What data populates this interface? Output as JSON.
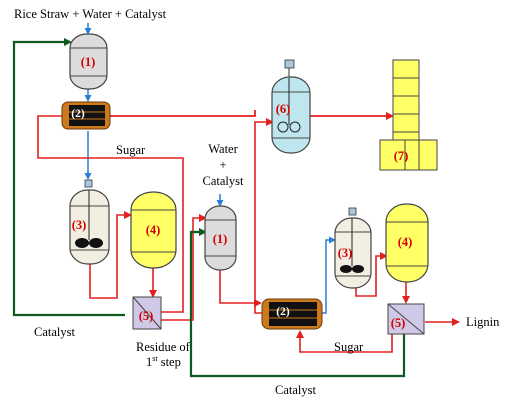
{
  "labels": {
    "feed_top": "Rice Straw + Water + Catalyst",
    "sugar_1": "Sugar",
    "water_catalyst_1": "Water",
    "water_catalyst_2": "+",
    "water_catalyst_3": "Catalyst",
    "catalyst_left": "Catalyst",
    "residue_1": "Residue of",
    "residue_2_base": "1",
    "residue_2_sup": "st",
    "residue_2_tail": " step",
    "sugar_2": "Sugar",
    "lignin": "Lignin",
    "catalyst_bottom": "Catalyst"
  },
  "units": {
    "reactor_1a": "(1)",
    "filter_2a": "(2)",
    "stirred_3a": "(3)",
    "tank_4a": "(4)",
    "separator_5a": "(5)",
    "fermenter_6": "(6)",
    "column_7": "(7)",
    "reactor_1b": "(1)",
    "filter_2b": "(2)",
    "stirred_3b": "(3)",
    "tank_4b": "(4)",
    "separator_5b": "(5)"
  },
  "colors": {
    "sugar_stream": "#e32020",
    "water_stream": "#2a7fd4",
    "catalyst_stream": "#0e5a1e",
    "reactor_fill": "#dcdcdc",
    "tank_fill": "#ffff66",
    "fermenter_fill": "#bfe6ee",
    "separator_fill": "#cfc8e6",
    "filter_fill": "#cc7a1c"
  },
  "icons": {
    "agitator": "impeller-icon",
    "stream_head": "arrowhead-icon"
  }
}
